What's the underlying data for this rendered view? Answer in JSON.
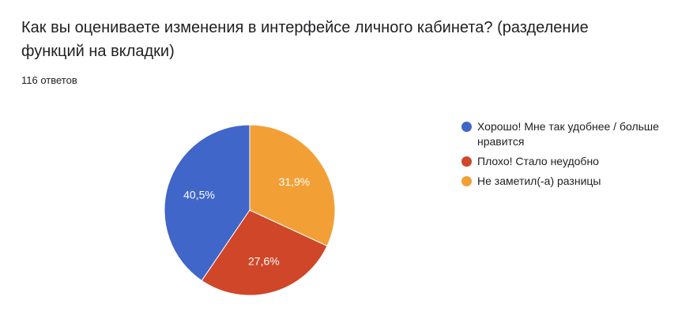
{
  "question": {
    "title": "Как вы оцениваете изменения в интерфейсе личного кабинета? (разделение функций на вкладки)",
    "responses": "116 ответов"
  },
  "chart_data": {
    "type": "pie",
    "title": "",
    "labels": [
      "Хорошо! Мне так удобнее / больше нравится",
      "Плохо! Стало неудобно",
      "Не заметил(-а) разницы"
    ],
    "values": [
      40.5,
      27.6,
      31.9
    ],
    "value_labels": [
      "40,5%",
      "27,6%",
      "31,9%"
    ],
    "colors": [
      "#4166c9",
      "#cf4628",
      "#f2a036"
    ],
    "legend_position": "right"
  }
}
